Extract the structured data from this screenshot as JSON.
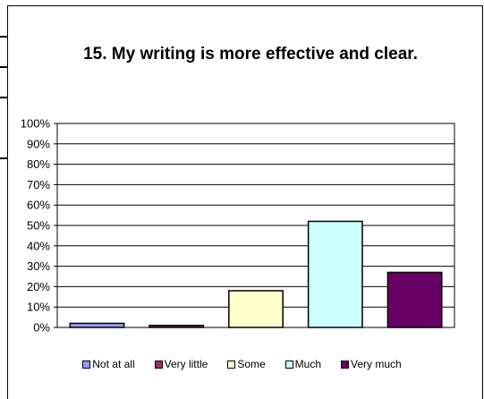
{
  "chart_data": {
    "type": "bar",
    "title": "15. My writing is more effective and clear.",
    "xlabel": "",
    "ylabel": "",
    "categories": [
      "Not at all",
      "Very little",
      "Some",
      "Much",
      "Very much"
    ],
    "values": [
      2,
      1,
      18,
      52,
      27
    ],
    "y_tick_labels": [
      "0%",
      "10%",
      "20%",
      "30%",
      "40%",
      "50%",
      "60%",
      "70%",
      "80%",
      "90%",
      "100%"
    ],
    "ylim": [
      0,
      100
    ],
    "grid": true,
    "legend_position": "bottom",
    "colors": [
      "#9999ff",
      "#993366",
      "#ffffcc",
      "#ccffff",
      "#660066"
    ],
    "plot_background": "#ffffff"
  }
}
